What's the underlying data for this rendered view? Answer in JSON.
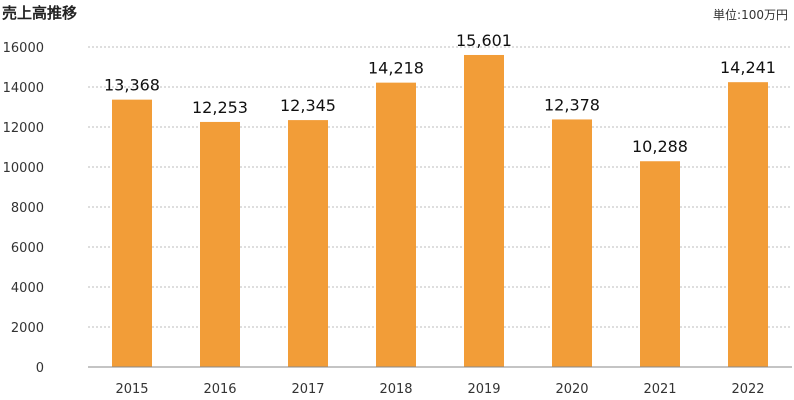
{
  "chart_data": {
    "type": "bar",
    "title": "売上高推移",
    "unit": "単位:100万円",
    "categories": [
      "2015",
      "2016",
      "2017",
      "2018",
      "2019",
      "2020",
      "2021",
      "2022"
    ],
    "values": [
      13368,
      12253,
      12345,
      14218,
      15601,
      12378,
      10288,
      14241
    ],
    "data_labels": [
      "13,368",
      "12,253",
      "12,345",
      "14,218",
      "15,601",
      "12,378",
      "10,288",
      "14,241"
    ],
    "yticks": [
      "0",
      "2000",
      "4000",
      "6000",
      "8000",
      "10000",
      "12000",
      "14000",
      "16000"
    ],
    "ylim": [
      0,
      16000
    ],
    "grid": true,
    "bar_color": "#F29D38",
    "xlabel": "",
    "ylabel": ""
  }
}
